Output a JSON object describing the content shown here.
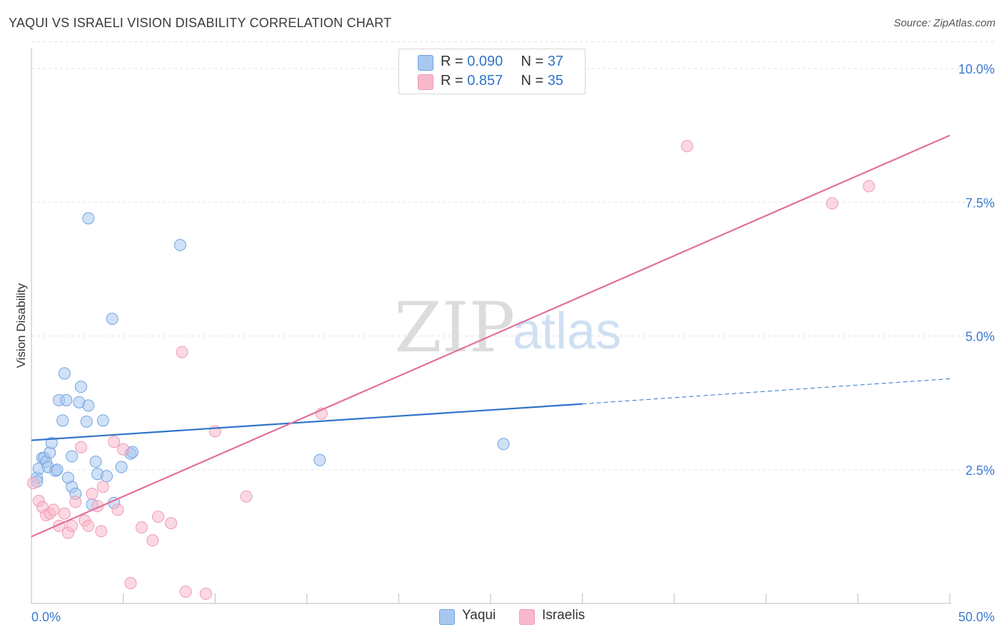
{
  "header": {
    "title": "YAQUI VS ISRAELI VISION DISABILITY CORRELATION CHART",
    "source": "Source: ZipAtlas.com"
  },
  "watermark": {
    "zip": "ZIP",
    "atlas": "atlas"
  },
  "legend": {
    "rows": [
      {
        "r_label": "R = ",
        "r_value": "0.090",
        "n_label": "N = ",
        "n_value": "37",
        "color": "#a9c8f0"
      },
      {
        "r_label": "R = ",
        "r_value": "0.857",
        "n_label": "N = ",
        "n_value": "35",
        "color": "#f7b8cb"
      }
    ]
  },
  "bottom_legend": [
    {
      "label": "Yaqui",
      "color": "#a9c8f0"
    },
    {
      "label": "Israelis",
      "color": "#f7b8cb"
    }
  ],
  "chart_data": {
    "type": "scatter",
    "title": "YAQUI VS ISRAELI VISION DISABILITY CORRELATION CHART",
    "xlabel": "",
    "ylabel": "Vision Disability",
    "xlim": [
      0,
      50
    ],
    "ylim": [
      0,
      10.5
    ],
    "x_tick_labels": [
      {
        "value": 0,
        "label": "0.0%"
      },
      {
        "value": 50,
        "label": "50.0%"
      }
    ],
    "y_tick_labels": [
      {
        "value": 2.5,
        "label": "2.5%"
      },
      {
        "value": 5.0,
        "label": "5.0%"
      },
      {
        "value": 7.5,
        "label": "7.5%"
      },
      {
        "value": 10.0,
        "label": "10.0%"
      }
    ],
    "series": [
      {
        "name": "Yaqui",
        "color": "#6fa3e0",
        "fill": "#a9c8f0",
        "trend_color": "#2f74c9",
        "trend": {
          "x0": 0,
          "y0": 3.05,
          "x1": 30,
          "y1": 3.73,
          "dashed_to_x": 50,
          "dashed_to_y": 4.2
        },
        "points": [
          [
            0.3,
            2.35
          ],
          [
            0.3,
            2.28
          ],
          [
            0.4,
            2.52
          ],
          [
            0.6,
            2.72
          ],
          [
            0.7,
            2.72
          ],
          [
            0.8,
            2.65
          ],
          [
            0.9,
            2.55
          ],
          [
            1.0,
            2.82
          ],
          [
            1.1,
            3.0
          ],
          [
            1.3,
            2.48
          ],
          [
            1.4,
            2.5
          ],
          [
            1.5,
            3.8
          ],
          [
            1.7,
            3.42
          ],
          [
            1.8,
            4.3
          ],
          [
            1.9,
            3.8
          ],
          [
            2.0,
            2.35
          ],
          [
            2.2,
            2.18
          ],
          [
            2.2,
            2.75
          ],
          [
            2.4,
            2.05
          ],
          [
            2.6,
            3.76
          ],
          [
            2.7,
            4.05
          ],
          [
            3.0,
            3.4
          ],
          [
            3.1,
            3.7
          ],
          [
            3.1,
            7.2
          ],
          [
            3.3,
            1.85
          ],
          [
            3.5,
            2.65
          ],
          [
            3.6,
            2.42
          ],
          [
            3.9,
            3.42
          ],
          [
            4.1,
            2.38
          ],
          [
            4.4,
            5.32
          ],
          [
            4.5,
            1.88
          ],
          [
            4.9,
            2.55
          ],
          [
            5.4,
            2.8
          ],
          [
            5.5,
            2.83
          ],
          [
            8.1,
            6.7
          ],
          [
            15.7,
            2.68
          ],
          [
            25.7,
            2.98
          ]
        ]
      },
      {
        "name": "Israelis",
        "color": "#ef9bb3",
        "fill": "#f7b8cb",
        "trend_color": "#e3709a",
        "trend": {
          "x0": 0,
          "y0": 1.25,
          "x1": 50,
          "y1": 8.75
        },
        "points": [
          [
            0.1,
            2.25
          ],
          [
            0.4,
            1.92
          ],
          [
            0.6,
            1.8
          ],
          [
            0.8,
            1.65
          ],
          [
            1.0,
            1.68
          ],
          [
            1.2,
            1.75
          ],
          [
            1.5,
            1.45
          ],
          [
            1.8,
            1.68
          ],
          [
            2.0,
            1.32
          ],
          [
            2.2,
            1.45
          ],
          [
            2.4,
            1.9
          ],
          [
            2.7,
            2.92
          ],
          [
            2.9,
            1.55
          ],
          [
            3.1,
            1.45
          ],
          [
            3.3,
            2.05
          ],
          [
            3.6,
            1.82
          ],
          [
            3.8,
            1.35
          ],
          [
            3.9,
            2.18
          ],
          [
            4.5,
            3.02
          ],
          [
            4.7,
            1.75
          ],
          [
            5.0,
            2.88
          ],
          [
            5.4,
            0.38
          ],
          [
            6.0,
            1.42
          ],
          [
            6.6,
            1.18
          ],
          [
            6.9,
            1.62
          ],
          [
            7.6,
            1.5
          ],
          [
            8.2,
            4.7
          ],
          [
            8.4,
            0.22
          ],
          [
            9.5,
            0.18
          ],
          [
            10.0,
            3.22
          ],
          [
            11.7,
            2.0
          ],
          [
            15.8,
            3.55
          ],
          [
            35.7,
            8.55
          ],
          [
            43.6,
            7.48
          ],
          [
            45.6,
            7.8
          ]
        ]
      }
    ]
  }
}
